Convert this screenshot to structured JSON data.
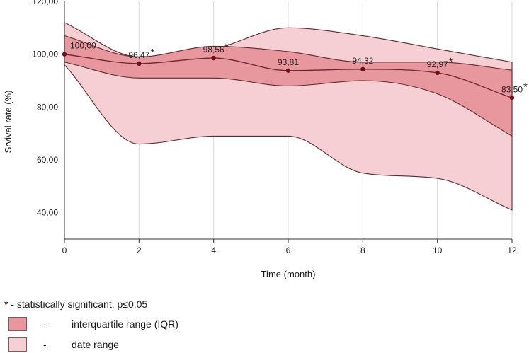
{
  "chart_data": {
    "type": "line",
    "title": "",
    "xlabel": "Time (month)",
    "ylabel": "Srvival rate (%)",
    "xlim": [
      0,
      12
    ],
    "ylim": [
      30,
      120
    ],
    "x_ticks": [
      "0",
      "2",
      "4",
      "6",
      "8",
      "10",
      "12"
    ],
    "y_ticks": [
      "40,00",
      "60,00",
      "80,00",
      "100,00",
      "120,00"
    ],
    "grid": "vertical",
    "series": [
      {
        "name": "median",
        "x": [
          0,
          2,
          4,
          6,
          8,
          10,
          12
        ],
        "values": [
          100.0,
          96.47,
          98.56,
          93.81,
          94.32,
          92.97,
          83.5
        ],
        "labels": [
          "100,00",
          "96,47",
          "98,56",
          "93,81",
          "94,32",
          "92,97",
          "83,50"
        ],
        "significant": [
          false,
          true,
          true,
          false,
          false,
          true,
          true
        ]
      },
      {
        "name": "interquartile range (IQR)",
        "x": [
          0,
          2,
          4,
          6,
          8,
          10,
          12
        ],
        "upper": [
          107,
          99,
          103,
          101,
          97,
          97,
          94
        ],
        "lower": [
          97,
          91,
          91,
          88,
          90,
          85,
          69
        ]
      },
      {
        "name": "date range",
        "x": [
          0,
          2,
          4,
          6,
          8,
          10,
          12
        ],
        "upper": [
          112,
          99,
          102,
          110,
          107,
          102,
          97
        ],
        "lower": [
          96,
          66,
          69,
          69,
          55,
          53,
          41
        ]
      }
    ],
    "significance_marker": "*",
    "legend_position": "bottom-left"
  },
  "legend": {
    "note": "* - statistically significant, p≤0.05",
    "dash": "-",
    "items": [
      {
        "label": "interquartile range (IQR)",
        "color": "#e8979f"
      },
      {
        "label": "date range",
        "color": "#f5cfd4"
      }
    ]
  },
  "colors": {
    "iqr_fill": "#e8979f",
    "range_fill": "#f5cfd4",
    "outline": "#5a2a30",
    "median_line": "#6b2530",
    "point": "#6b0f1c",
    "grid": "#d9d9d9",
    "axis": "#333333"
  }
}
